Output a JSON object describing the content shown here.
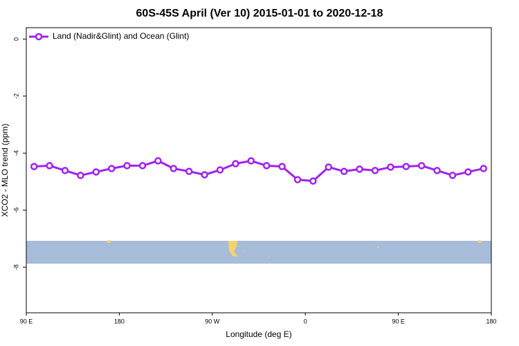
{
  "chart_data": {
    "type": "line",
    "title": "60S-45S April (Ver 10)   2015-01-01 to 2020-12-18",
    "x_label": "Longitude (deg E)",
    "y_label": "XCO2 - MLO trend (ppm)",
    "x": [
      97.5,
      112.5,
      127.5,
      142.5,
      157.5,
      172.5,
      187.5,
      202.5,
      217.5,
      232.5,
      247.5,
      262.5,
      277.5,
      292.5,
      307.5,
      322.5,
      337.5,
      352.5,
      367.5,
      382.5,
      397.5,
      412.5,
      427.5,
      442.5,
      457.5,
      472.5,
      487.5,
      502.5,
      517.5,
      532.5
    ],
    "series": [
      {
        "name": "Land (Nadir&Glint) and Ocean (Glint)",
        "color": "#a020f0",
        "values": [
          -4.47,
          -4.44,
          -4.61,
          -4.78,
          -4.66,
          -4.54,
          -4.44,
          -4.44,
          -4.27,
          -4.54,
          -4.64,
          -4.76,
          -4.59,
          -4.37,
          -4.27,
          -4.44,
          -4.47,
          -4.93,
          -4.98,
          -4.49,
          -4.64,
          -4.56,
          -4.61,
          -4.49,
          -4.47,
          -4.44,
          -4.61,
          -4.78,
          -4.66,
          -4.54
        ]
      }
    ],
    "xlim": [
      90,
      540
    ],
    "xticks": [
      {
        "value": 90,
        "label": "90 E"
      },
      {
        "value": 180,
        "label": "180"
      },
      {
        "value": 270,
        "label": "90 W"
      },
      {
        "value": 360,
        "label": "0"
      },
      {
        "value": 450,
        "label": "90 E"
      },
      {
        "value": 540,
        "label": "180"
      }
    ],
    "ylim": [
      -9.6,
      0.4
    ],
    "yticks": [
      0,
      -2,
      -4,
      -6,
      -8
    ],
    "legend": "top-left"
  }
}
